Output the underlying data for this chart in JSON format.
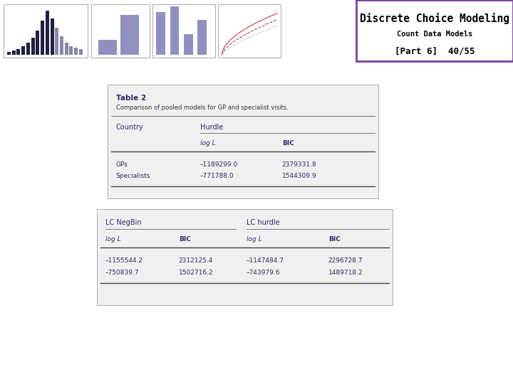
{
  "title_line1": "Discrete Choice Modeling",
  "title_line2": "Count Data Models",
  "title_line3": "[Part 6]  40/55",
  "header_bg": "#7B3FA0",
  "header_box_border": "#7B3FA0",
  "slide_bg": "#FFFFFF",
  "left_bar_color1": "#4B4B9B",
  "left_bar_color2": "#7B3FA0",
  "table_bg": "#F0F0F0",
  "table_border": "#999999",
  "text_color": "#2B2B6B",
  "table1_title": "Table 2",
  "table1_subtitle": "Comparison of pooled models for GP and specialist visits.",
  "table1_col1_header": "Country",
  "table1_col2_header": "Hurdle",
  "table1_sub_col2": "log L",
  "table1_sub_col3": "BIC",
  "table1_row1_label": "GPs",
  "table1_row1_col2": "–1189299.0",
  "table1_row1_col3": "2379331.8",
  "table1_row2_label": "Specialists",
  "table1_row2_col2": "–771788.0",
  "table1_row2_col3": "1544309.9",
  "table2_col1_header": "LC NegBin",
  "table2_col2_header": "LC hurdle",
  "table2_sub_col1": "log L",
  "table2_sub_col2": "BIC",
  "table2_sub_col3": "log L",
  "table2_sub_col4": "BIC",
  "table2_row1_c1": "–1155544.2",
  "table2_row1_c2": "2312125.4",
  "table2_row1_c3": "–1147484.7",
  "table2_row1_c4": "2296728.7",
  "table2_row2_c1": "–750839.7",
  "table2_row2_c2": "1502716.2",
  "table2_row2_c3": "–743979.6",
  "table2_row2_c4": "1489718.2"
}
